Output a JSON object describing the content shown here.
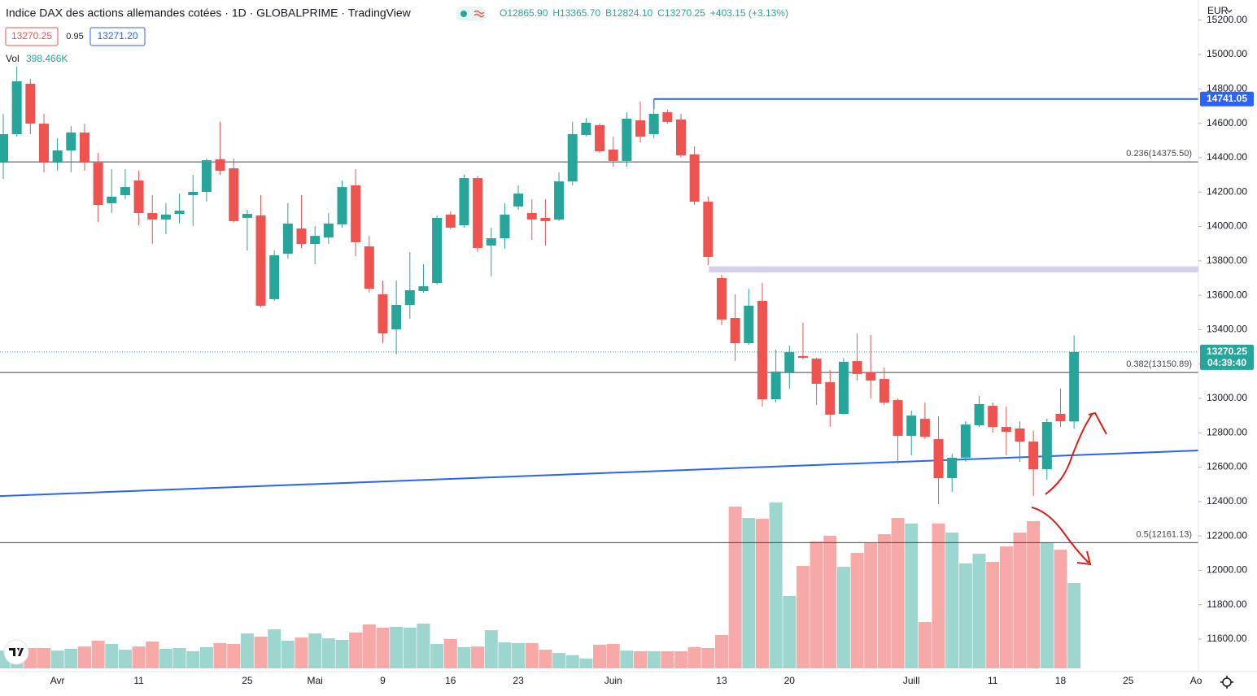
{
  "header": {
    "title": "Indice DAX des actions allemandes cotées · 1D · GLOBALPRIME · TradingView",
    "ohlc": [
      "O12865.90",
      "H13365.70",
      "B12824.10",
      "C13270.25",
      "+403.15 (+3.13%)"
    ],
    "bid": "13270.25",
    "spread": "0.95",
    "ask": "13271.20",
    "currency": "EUR"
  },
  "chart_data": {
    "type": "candlestick",
    "categories": [
      null,
      null,
      null,
      null,
      "Avr",
      null,
      null,
      null,
      null,
      null,
      "11",
      null,
      null,
      null,
      null,
      null,
      null,
      null,
      "25",
      null,
      null,
      null,
      null,
      "Mai",
      null,
      null,
      null,
      null,
      "9",
      null,
      null,
      null,
      null,
      "16",
      null,
      null,
      null,
      null,
      "23",
      null,
      null,
      null,
      null,
      null,
      null,
      "Juin",
      null,
      null,
      null,
      null,
      null,
      null,
      null,
      "13",
      null,
      null,
      null,
      null,
      "20",
      null,
      null,
      null,
      null,
      null,
      null,
      null,
      null,
      "Juill",
      null,
      null,
      null,
      null,
      null,
      "11",
      null,
      null,
      null,
      null,
      "18",
      null,
      null,
      null,
      null,
      "25",
      null,
      null,
      null,
      null,
      "Ao"
    ],
    "open": [
      14371,
      14537,
      14830,
      14598,
      14371,
      14442,
      14546,
      14371,
      14135,
      14182,
      14267,
      14078,
      14040,
      14073,
      14182,
      14201,
      14390,
      14338,
      14050,
      14064,
      13577,
      13841,
      13988,
      13898,
      13936,
      14012,
      14239,
      13884,
      13605,
      13402,
      13544,
      13624,
      13671,
      14069,
      14007,
      14281,
      13889,
      13931,
      14116,
      14078,
      14050,
      14040,
      14262,
      14532,
      14589,
      14447,
      14381,
      14617,
      14537,
      14664,
      14622,
      14419,
      14144,
      13700,
      13468,
      13321,
      13567,
      12995,
      13151,
      13246,
      13231,
      13094,
      12910,
      13217,
      13151,
      13113,
      12990,
      12782,
      12881,
      12763,
      12536,
      12655,
      12844,
      12957,
      12834,
      12825,
      12749,
      12588,
      12910,
      12865.9,
      null,
      null,
      null,
      null,
      null,
      null,
      null,
      null,
      null
    ],
    "high": [
      14655,
      14929,
      14858,
      14655,
      14513,
      14584,
      14598,
      14428,
      14333,
      14333,
      14324,
      14182,
      14135,
      14191,
      14300,
      14395,
      14608,
      14395,
      14097,
      14182,
      13860,
      14135,
      14182,
      14002,
      14078,
      14267,
      14333,
      13945,
      13685,
      13685,
      13851,
      13780,
      14064,
      14088,
      14300,
      14295,
      13993,
      14135,
      14239,
      14158,
      14158,
      14314,
      14608,
      14631,
      14598,
      14522,
      14664,
      14726,
      14740,
      14679,
      14655,
      14466,
      14173,
      13719,
      13605,
      13638,
      13671,
      13283,
      13307,
      13440,
      13236,
      13165,
      13236,
      13378,
      13369,
      13179,
      13000,
      12929,
      12976,
      12896,
      12678,
      12867,
      13014,
      12976,
      12953,
      12867,
      12811,
      12881,
      13057,
      13365.7,
      null,
      null,
      null,
      null,
      null,
      null,
      null,
      null,
      null
    ],
    "low": [
      14277,
      14523,
      14537,
      14314,
      14324,
      14314,
      14324,
      14026,
      14078,
      14158,
      14007,
      13898,
      13955,
      14017,
      14002,
      14144,
      14300,
      14021,
      13860,
      13529,
      13567,
      13813,
      13875,
      13780,
      13898,
      13993,
      13827,
      13615,
      13321,
      13255,
      13463,
      13615,
      13662,
      13983,
      13993,
      13851,
      13709,
      13870,
      14097,
      13922,
      13889,
      14031,
      14239,
      14523,
      14428,
      14348,
      14348,
      14489,
      14513,
      14598,
      14400,
      14125,
      13775,
      13425,
      13217,
      13312,
      12953,
      12976,
      13057,
      13227,
      12962,
      12834,
      12905,
      13104,
      12999,
      12962,
      12622,
      12669,
      12763,
      12385,
      12456,
      12631,
      12834,
      12801,
      12669,
      12631,
      12432,
      12527,
      12834,
      12824.1,
      null,
      null,
      null,
      null,
      null,
      null,
      null,
      null,
      null
    ],
    "close": [
      14537,
      14844,
      14598,
      14371,
      14442,
      14546,
      14371,
      14125,
      14173,
      14229,
      14078,
      14040,
      14069,
      14092,
      14201,
      14385,
      14324,
      14031,
      14073,
      13539,
      13832,
      14017,
      13898,
      13945,
      14017,
      14229,
      13908,
      13638,
      13378,
      13544,
      13629,
      13652,
      14050,
      13993,
      14281,
      13875,
      13931,
      14069,
      14191,
      14040,
      14031,
      14262,
      14537,
      14603,
      14437,
      14381,
      14627,
      14522,
      14655,
      14608,
      14414,
      14144,
      13823,
      13459,
      13321,
      13539,
      12995,
      13156,
      13269,
      13236,
      13085,
      12905,
      13213,
      13142,
      13104,
      12976,
      12782,
      12900,
      12777,
      12536,
      12655,
      12848,
      12967,
      12834,
      12806,
      12749,
      12588,
      12863,
      12867,
      13270.25,
      null,
      null,
      null,
      null,
      null,
      null,
      null,
      null,
      null
    ],
    "volume": {
      "name": "Vol",
      "last_label": "398.466K",
      "values": [
        83,
        95,
        95,
        95,
        83,
        91,
        102,
        129,
        114,
        87,
        102,
        125,
        91,
        95,
        80,
        99,
        118,
        114,
        163,
        148,
        182,
        129,
        144,
        163,
        140,
        133,
        167,
        205,
        190,
        194,
        190,
        209,
        114,
        137,
        99,
        102,
        178,
        121,
        118,
        118,
        87,
        72,
        61,
        46,
        110,
        114,
        83,
        80,
        80,
        80,
        80,
        99,
        95,
        156,
        755,
        702,
        698,
        774,
        338,
        478,
        592,
        619,
        474,
        539,
        584,
        626,
        702,
        676,
        216,
        676,
        634,
        490,
        535,
        497,
        569,
        634,
        687,
        588,
        554,
        398.466,
        null,
        null,
        null,
        null,
        null,
        null,
        null,
        null,
        null
      ]
    },
    "up_color": "#26a69a",
    "down_color": "#ef5350",
    "up_volume_color": "#9dd5cf",
    "down_volume_color": "#f6a9a7",
    "countdown": "04:39:40",
    "hline": 14741.05,
    "zone": [
      13733,
      13768
    ],
    "trendline": [
      12432,
      12697
    ],
    "fib": [
      {
        "value": 14375.5,
        "label": "0.236(14375.50)"
      },
      {
        "value": 13150.89,
        "label": "0.382(13150.89)"
      },
      {
        "value": 12161.13,
        "label": "0.5(12161.13)"
      }
    ],
    "ylim": [
      11411,
      15317
    ],
    "yticks": [
      {
        "value": 11600,
        "label": "11600.00"
      },
      {
        "value": 11800,
        "label": "11800.00"
      },
      {
        "value": 12000,
        "label": "12000.00"
      },
      {
        "value": 12200,
        "label": "12200.00"
      },
      {
        "value": 12400,
        "label": "12400.00"
      },
      {
        "value": 12600,
        "label": "12600.00"
      },
      {
        "value": 12800,
        "label": "12800.00"
      },
      {
        "value": 13000,
        "label": "13000.00"
      },
      {
        "value": 13200,
        "label": "13200.00"
      },
      {
        "value": 13400,
        "label": "13400.00"
      },
      {
        "value": 13600,
        "label": "13600.00"
      },
      {
        "value": 13800,
        "label": "13800.00"
      },
      {
        "value": 14000,
        "label": "14000.00"
      },
      {
        "value": 14200,
        "label": "14200.00"
      },
      {
        "value": 14400,
        "label": "14400.00"
      },
      {
        "value": 14600,
        "label": "14600.00"
      },
      {
        "value": 14800,
        "label": "14800.00"
      },
      {
        "value": 15000,
        "label": "15000.00"
      },
      {
        "value": 15200,
        "label": "15200.00"
      }
    ],
    "grid": false
  }
}
